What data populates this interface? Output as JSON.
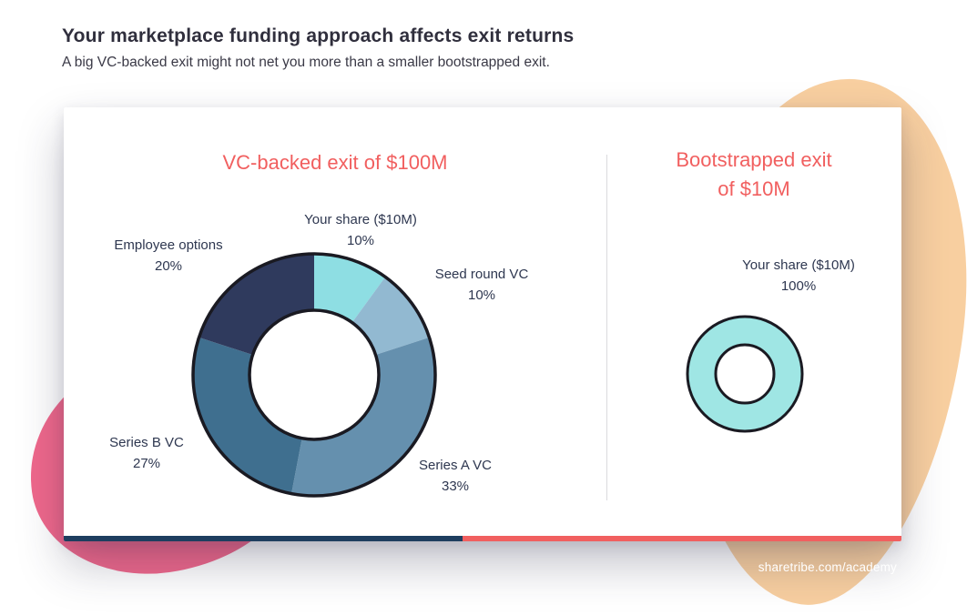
{
  "page": {
    "title": "Your marketplace funding approach affects exit returns",
    "subtitle": "A big VC-backed exit might not net you more than a smaller bootstrapped exit.",
    "footer_link": "sharetribe.com/academy"
  },
  "colors": {
    "heading_red": "#f15f5f",
    "accent_navy": "#1e3e5f",
    "accent_red": "#f15f5f",
    "blob_orange": "#f8cfa0",
    "blob_pink": "#f0688c",
    "donut_outline": "#1a1a22"
  },
  "chart_data": [
    {
      "type": "pie",
      "donut": true,
      "title": "VC-backed exit of $100M",
      "segments": [
        {
          "label": "Your share ($10M)",
          "pct": 10,
          "pct_label": "10%",
          "color": "#8edee3"
        },
        {
          "label": "Seed round VC",
          "pct": 10,
          "pct_label": "10%",
          "color": "#92b9d1"
        },
        {
          "label": "Series A VC",
          "pct": 33,
          "pct_label": "33%",
          "color": "#6590ae"
        },
        {
          "label": "Series B VC",
          "pct": 27,
          "pct_label": "27%",
          "color": "#3f6f8f"
        },
        {
          "label": "Employee options",
          "pct": 20,
          "pct_label": "20%",
          "color": "#2f3a5d"
        }
      ]
    },
    {
      "type": "pie",
      "donut": true,
      "title": "Bootstrapped exit of $10M",
      "title_lines": [
        "Bootstrapped exit",
        "of $10M"
      ],
      "segments": [
        {
          "label": "Your share ($10M)",
          "pct": 100,
          "pct_label": "100%",
          "color": "#9fe6e4"
        }
      ]
    }
  ]
}
